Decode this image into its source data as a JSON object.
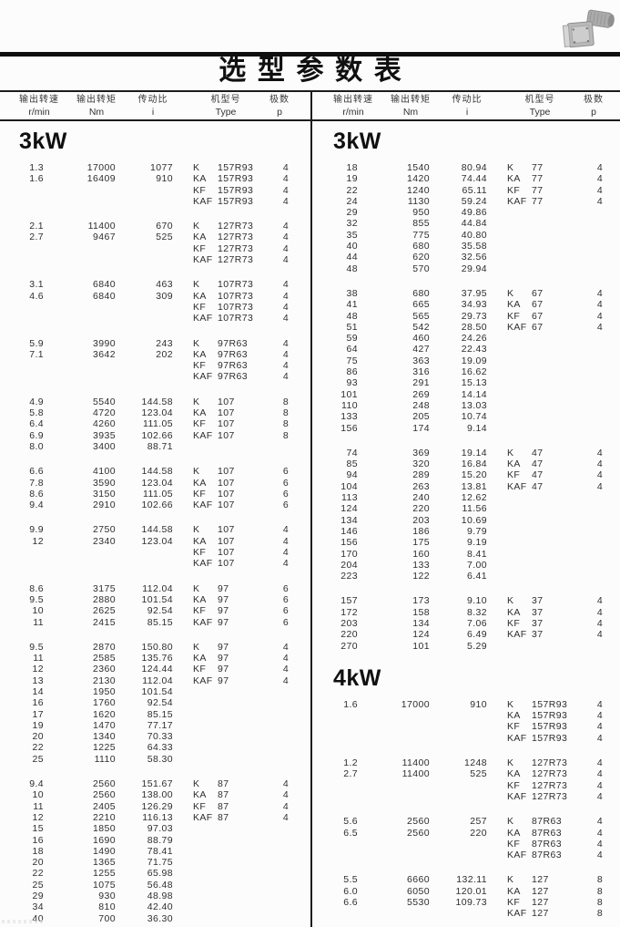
{
  "page": {
    "title": "选型参数表"
  },
  "table_headers": {
    "speed_label": "输出转速",
    "speed_unit": "r/min",
    "torque_label": "输出转矩",
    "torque_unit": "Nm",
    "ratio_label": "传动比",
    "ratio_unit": "i",
    "type_label": "机型号",
    "type_unit": "Type",
    "poles_label": "极数",
    "poles_unit": "p"
  },
  "icons": {
    "top_right_photo": "gearmotor-photo"
  },
  "columns": [
    {
      "side": "left",
      "sections": [
        {
          "power": "3kW",
          "groups": [
            {
              "speeds": [
                "1.3",
                "1.6"
              ],
              "torques": [
                "17000",
                "16409"
              ],
              "ratios": [
                "1077",
                "910"
              ],
              "type_prefixes": [
                "K",
                "KA",
                "KF",
                "KAF"
              ],
              "type_size": "157R93",
              "poles": [
                "4",
                "4",
                "4",
                "4"
              ]
            },
            {
              "speeds": [
                "2.1",
                "2.7"
              ],
              "torques": [
                "11400",
                "9467"
              ],
              "ratios": [
                "670",
                "525"
              ],
              "type_prefixes": [
                "K",
                "KA",
                "KF",
                "KAF"
              ],
              "type_size": "127R73",
              "poles": [
                "4",
                "4",
                "4",
                "4"
              ]
            },
            {
              "speeds": [
                "3.1",
                "4.6"
              ],
              "torques": [
                "6840",
                "6840"
              ],
              "ratios": [
                "463",
                "309"
              ],
              "type_prefixes": [
                "K",
                "KA",
                "KF",
                "KAF"
              ],
              "type_size": "107R73",
              "poles": [
                "4",
                "4",
                "4",
                "4"
              ]
            },
            {
              "speeds": [
                "5.9",
                "7.1"
              ],
              "torques": [
                "3990",
                "3642"
              ],
              "ratios": [
                "243",
                "202"
              ],
              "type_prefixes": [
                "K",
                "KA",
                "KF",
                "KAF"
              ],
              "type_size": "97R63",
              "poles": [
                "4",
                "4",
                "4",
                "4"
              ]
            },
            {
              "speeds": [
                "4.9",
                "5.8",
                "6.4",
                "6.9",
                "8.0"
              ],
              "torques": [
                "5540",
                "4720",
                "4260",
                "3935",
                "3400"
              ],
              "ratios": [
                "144.58",
                "123.04",
                "111.05",
                "102.66",
                "88.71"
              ],
              "type_prefixes": [
                "K",
                "KA",
                "KF",
                "KAF"
              ],
              "type_size": "107",
              "poles": [
                "8",
                "8",
                "8",
                "8"
              ]
            },
            {
              "speeds": [
                "6.6",
                "7.8",
                "8.6",
                "9.4"
              ],
              "torques": [
                "4100",
                "3590",
                "3150",
                "2910"
              ],
              "ratios": [
                "144.58",
                "123.04",
                "111.05",
                "102.66"
              ],
              "type_prefixes": [
                "K",
                "KA",
                "KF",
                "KAF"
              ],
              "type_size": "107",
              "poles": [
                "6",
                "6",
                "6",
                "6"
              ]
            },
            {
              "speeds": [
                "9.9",
                "12"
              ],
              "torques": [
                "2750",
                "2340"
              ],
              "ratios": [
                "144.58",
                "123.04"
              ],
              "type_prefixes": [
                "K",
                "KA",
                "KF",
                "KAF"
              ],
              "type_size": "107",
              "poles": [
                "4",
                "4",
                "4",
                "4"
              ]
            },
            {
              "speeds": [
                "8.6",
                "9.5",
                "10",
                "11"
              ],
              "torques": [
                "3175",
                "2880",
                "2625",
                "2415"
              ],
              "ratios": [
                "112.04",
                "101.54",
                "92.54",
                "85.15"
              ],
              "type_prefixes": [
                "K",
                "KA",
                "KF",
                "KAF"
              ],
              "type_size": "97",
              "poles": [
                "6",
                "6",
                "6",
                "6"
              ]
            },
            {
              "speeds": [
                "9.5",
                "11",
                "12",
                "13",
                "14",
                "16",
                "17",
                "19",
                "20",
                "22",
                "25"
              ],
              "torques": [
                "2870",
                "2585",
                "2360",
                "2130",
                "1950",
                "1760",
                "1620",
                "1470",
                "1340",
                "1225",
                "1110"
              ],
              "ratios": [
                "150.80",
                "135.76",
                "124.44",
                "112.04",
                "101.54",
                "92.54",
                "85.15",
                "77.17",
                "70.33",
                "64.33",
                "58.30"
              ],
              "type_prefixes": [
                "K",
                "KA",
                "KF",
                "KAF"
              ],
              "type_size": "97",
              "poles": [
                "4",
                "4",
                "4",
                "4"
              ]
            },
            {
              "speeds": [
                "9.4",
                "10",
                "11",
                "12",
                "15",
                "16",
                "18",
                "20",
                "22",
                "25",
                "29",
                "34",
                "40"
              ],
              "torques": [
                "2560",
                "2560",
                "2405",
                "2210",
                "1850",
                "1690",
                "1490",
                "1365",
                "1255",
                "1075",
                "930",
                "810",
                "700"
              ],
              "ratios": [
                "151.67",
                "138.00",
                "126.29",
                "116.13",
                "97.03",
                "88.79",
                "78.41",
                "71.75",
                "65.98",
                "56.48",
                "48.98",
                "42.40",
                "36.30"
              ],
              "type_prefixes": [
                "K",
                "KA",
                "KF",
                "KAF"
              ],
              "type_size": "87",
              "poles": [
                "4",
                "4",
                "4",
                "4"
              ]
            }
          ]
        }
      ]
    },
    {
      "side": "right",
      "sections": [
        {
          "power": "3kW",
          "groups": [
            {
              "speeds": [
                "18",
                "19",
                "22",
                "24",
                "29",
                "32",
                "35",
                "40",
                "44",
                "48"
              ],
              "torques": [
                "1540",
                "1420",
                "1240",
                "1130",
                "950",
                "855",
                "775",
                "680",
                "620",
                "570"
              ],
              "ratios": [
                "80.94",
                "74.44",
                "65.11",
                "59.24",
                "49.86",
                "44.84",
                "40.80",
                "35.58",
                "32.56",
                "29.94"
              ],
              "type_prefixes": [
                "K",
                "KA",
                "KF",
                "KAF"
              ],
              "type_size": "77",
              "poles": [
                "4",
                "4",
                "4",
                "4"
              ]
            },
            {
              "speeds": [
                "38",
                "41",
                "48",
                "51",
                "59",
                "64",
                "75",
                "86",
                "93",
                "101",
                "110",
                "133",
                "156"
              ],
              "torques": [
                "680",
                "665",
                "565",
                "542",
                "460",
                "427",
                "363",
                "316",
                "291",
                "269",
                "248",
                "205",
                "174"
              ],
              "ratios": [
                "37.95",
                "34.93",
                "29.73",
                "28.50",
                "24.26",
                "22.43",
                "19.09",
                "16.62",
                "15.13",
                "14.14",
                "13.03",
                "10.74",
                "9.14"
              ],
              "type_prefixes": [
                "K",
                "KA",
                "KF",
                "KAF"
              ],
              "type_size": "67",
              "poles": [
                "4",
                "4",
                "4",
                "4"
              ]
            },
            {
              "speeds": [
                "74",
                "85",
                "94",
                "104",
                "113",
                "124",
                "134",
                "146",
                "156",
                "170",
                "204",
                "223"
              ],
              "torques": [
                "369",
                "320",
                "289",
                "263",
                "240",
                "220",
                "203",
                "186",
                "175",
                "160",
                "133",
                "122"
              ],
              "ratios": [
                "19.14",
                "16.84",
                "15.20",
                "13.81",
                "12.62",
                "11.56",
                "10.69",
                "9.79",
                "9.19",
                "8.41",
                "7.00",
                "6.41"
              ],
              "type_prefixes": [
                "K",
                "KA",
                "KF",
                "KAF"
              ],
              "type_size": "47",
              "poles": [
                "4",
                "4",
                "4",
                "4"
              ]
            },
            {
              "speeds": [
                "157",
                "172",
                "203",
                "220",
                "270"
              ],
              "torques": [
                "173",
                "158",
                "134",
                "124",
                "101"
              ],
              "ratios": [
                "9.10",
                "8.32",
                "7.06",
                "6.49",
                "5.29"
              ],
              "type_prefixes": [
                "K",
                "KA",
                "KF",
                "KAF"
              ],
              "type_size": "37",
              "poles": [
                "4",
                "4",
                "4",
                "4"
              ]
            }
          ]
        },
        {
          "power": "4kW",
          "groups": [
            {
              "speeds": [
                "1.6"
              ],
              "torques": [
                "17000"
              ],
              "ratios": [
                "910"
              ],
              "type_prefixes": [
                "K",
                "KA",
                "KF",
                "KAF"
              ],
              "type_size": "157R93",
              "poles": [
                "4",
                "4",
                "4",
                "4"
              ]
            },
            {
              "speeds": [
                "1.2",
                "2.7"
              ],
              "torques": [
                "11400",
                "11400"
              ],
              "ratios": [
                "1248",
                "525"
              ],
              "type_prefixes": [
                "K",
                "KA",
                "KF",
                "KAF"
              ],
              "type_size": "127R73",
              "poles": [
                "4",
                "4",
                "4",
                "4"
              ]
            },
            {
              "speeds": [
                "5.6",
                "6.5"
              ],
              "torques": [
                "2560",
                "2560"
              ],
              "ratios": [
                "257",
                "220"
              ],
              "type_prefixes": [
                "K",
                "KA",
                "KF",
                "KAF"
              ],
              "type_size": "87R63",
              "poles": [
                "4",
                "4",
                "4",
                "4"
              ]
            },
            {
              "speeds": [
                "5.5",
                "6.0",
                "6.6"
              ],
              "torques": [
                "6660",
                "6050",
                "5530"
              ],
              "ratios": [
                "132.11",
                "120.01",
                "109.73"
              ],
              "type_prefixes": [
                "K",
                "KA",
                "KF",
                "KAF"
              ],
              "type_size": "127",
              "poles": [
                "8",
                "8",
                "8",
                "8"
              ]
            }
          ]
        }
      ]
    }
  ]
}
